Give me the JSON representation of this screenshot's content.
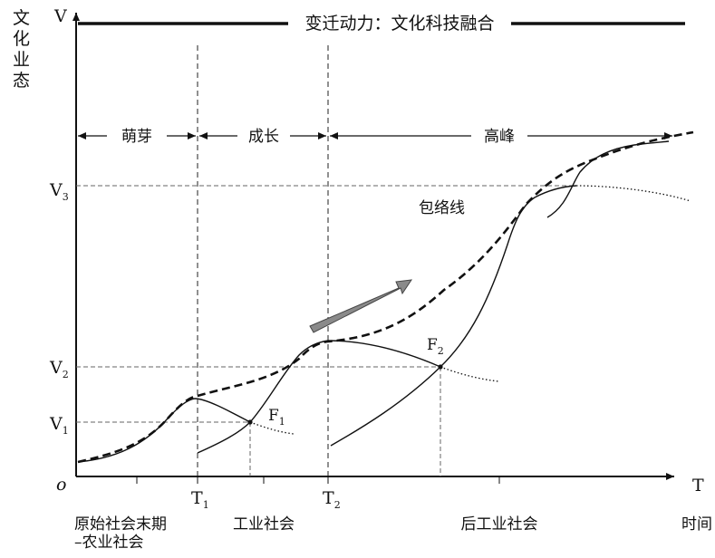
{
  "y_axis": {
    "letter": "V",
    "title_chars": [
      "文",
      "化",
      "业",
      "态"
    ]
  },
  "x_axis": {
    "letter": "T",
    "origin": "o",
    "time_label": "时间"
  },
  "top_banner": "变迁动力：文化科技融合",
  "stages": {
    "sprout": "萌芽",
    "growth": "成长",
    "peak": "高峰"
  },
  "envelope_label": "包络线",
  "values": {
    "v1": {
      "main": "V",
      "sub": "1"
    },
    "v2": {
      "main": "V",
      "sub": "2"
    },
    "v3": {
      "main": "V",
      "sub": "3"
    }
  },
  "times": {
    "t1": {
      "main": "T",
      "sub": "1"
    },
    "t2": {
      "main": "T",
      "sub": "2"
    }
  },
  "points": {
    "f1": {
      "main": "F",
      "sub": "1"
    },
    "f2": {
      "main": "F",
      "sub": "2"
    }
  },
  "eras": {
    "primitive_line1": "原始社会末期",
    "primitive_line2": "–农业社会",
    "industrial": "工业社会",
    "post_industrial": "后工业社会"
  },
  "colors": {
    "ink": "#111111",
    "arrow_fill": "#8a8a8a",
    "arrow_stroke": "#444444"
  }
}
